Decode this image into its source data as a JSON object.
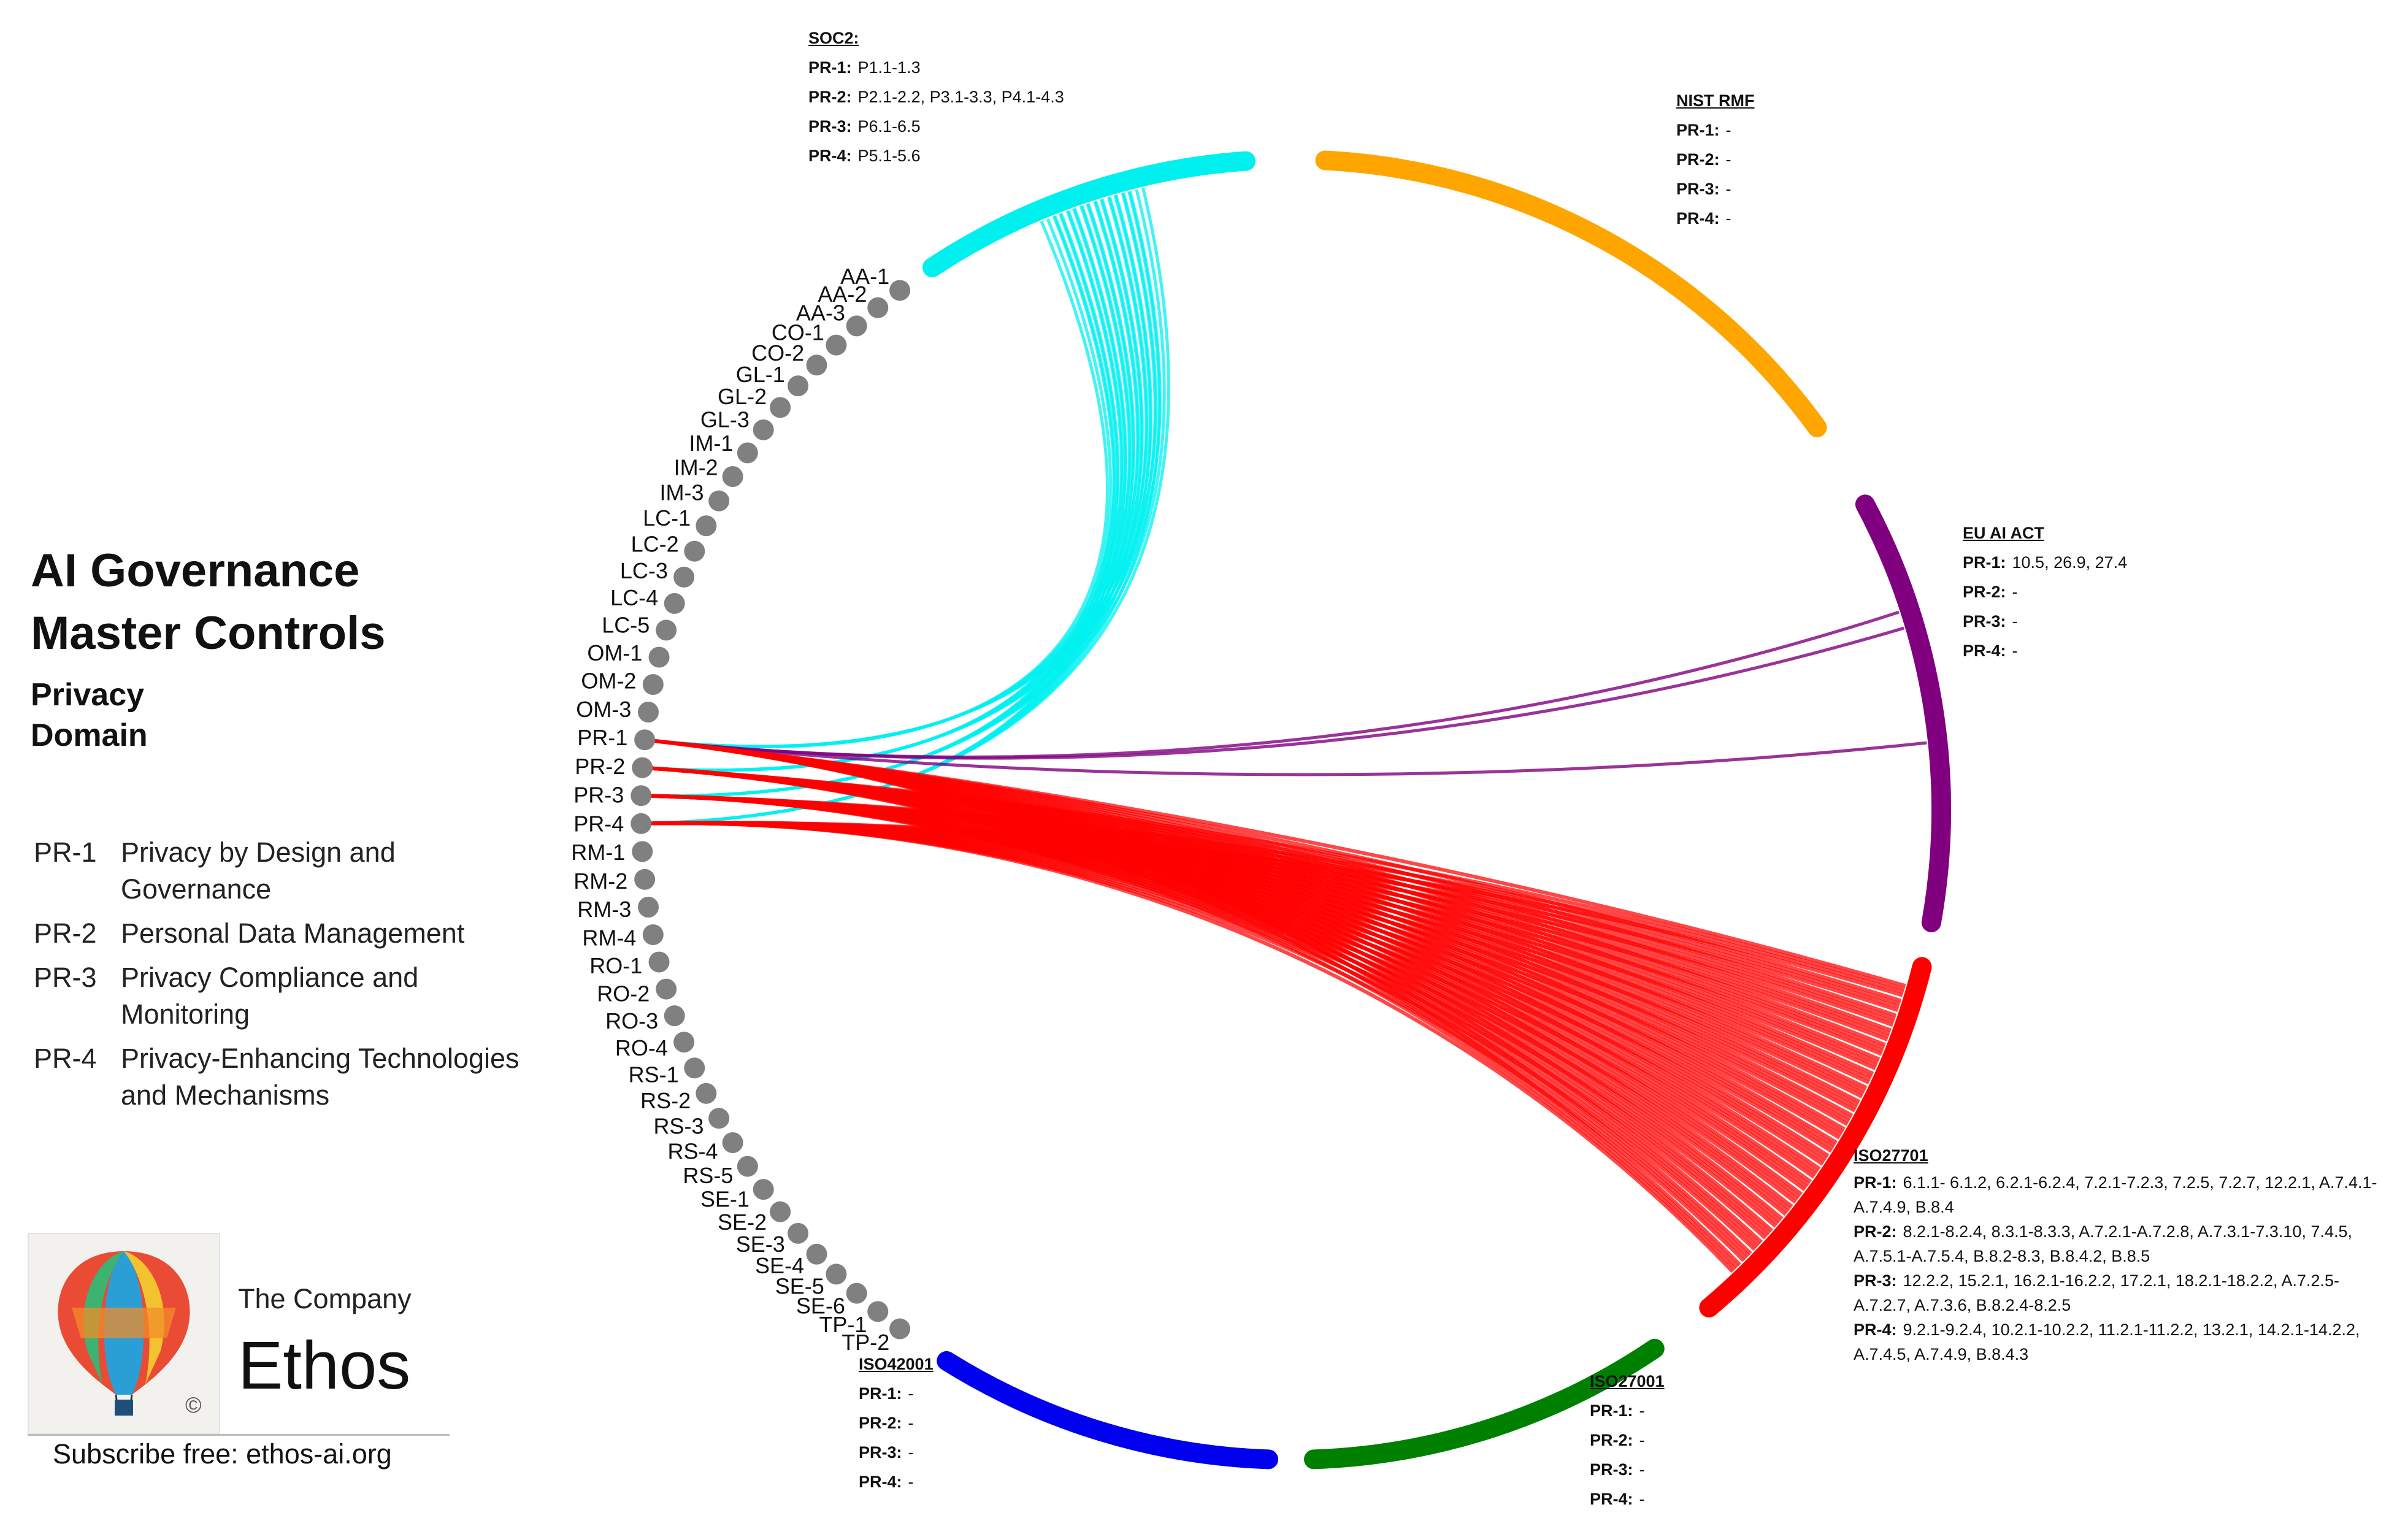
{
  "title_lines": [
    "AI Governance",
    "Master Controls"
  ],
  "subtitle_lines": [
    "Privacy",
    "Domain"
  ],
  "legend": [
    {
      "code": "PR-1",
      "desc": "Privacy by Design and Governance"
    },
    {
      "code": "PR-2",
      "desc": "Personal Data Management"
    },
    {
      "code": "PR-3",
      "desc": "Privacy Compliance and Monitoring"
    },
    {
      "code": "PR-4",
      "desc": "Privacy-Enhancing Technologies and Mechanisms"
    }
  ],
  "company": {
    "prefix": "The Company",
    "name": "Ethos",
    "subscribe": "Subscribe free: ethos-ai.org",
    "copyright": "©"
  },
  "controls": [
    "AA-1",
    "AA-2",
    "AA-3",
    "CO-1",
    "CO-2",
    "GL-1",
    "GL-2",
    "GL-3",
    "IM-1",
    "IM-2",
    "IM-3",
    "LC-1",
    "LC-2",
    "LC-3",
    "LC-4",
    "LC-5",
    "OM-1",
    "OM-2",
    "OM-3",
    "PR-1",
    "PR-2",
    "PR-3",
    "PR-4",
    "RM-1",
    "RM-2",
    "RM-3",
    "RM-4",
    "RO-1",
    "RO-2",
    "RO-3",
    "RO-4",
    "RS-1",
    "RS-2",
    "RS-3",
    "RS-4",
    "RS-5",
    "SE-1",
    "SE-2",
    "SE-3",
    "SE-4",
    "SE-5",
    "SE-6",
    "TP-1",
    "TP-2"
  ],
  "control_dot_color": "#808080",
  "frameworks": [
    {
      "name": "SOC2:",
      "color": "#00f0f0",
      "rows": [
        {
          "label": "PR-1:",
          "value": "P1.1-1.3"
        },
        {
          "label": "PR-2:",
          "value": "P2.1-2.2, P3.1-3.3, P4.1-4.3"
        },
        {
          "label": "PR-3:",
          "value": "P6.1-6.5"
        },
        {
          "label": "PR-4:",
          "value": "P5.1-5.6"
        }
      ]
    },
    {
      "name": "NIST RMF",
      "color": "#ffa500",
      "rows": [
        {
          "label": "PR-1:",
          "value": "-"
        },
        {
          "label": "PR-2:",
          "value": "-"
        },
        {
          "label": "PR-3:",
          "value": "-"
        },
        {
          "label": "PR-4:",
          "value": "-"
        }
      ]
    },
    {
      "name": "EU AI ACT",
      "color": "#800080",
      "rows": [
        {
          "label": "PR-1:",
          "value": "10.5, 26.9, 27.4"
        },
        {
          "label": "PR-2:",
          "value": "-"
        },
        {
          "label": "PR-3:",
          "value": "-"
        },
        {
          "label": "PR-4:",
          "value": "-"
        }
      ]
    },
    {
      "name": "ISO27701",
      "color": "#ff0000",
      "rows": [
        {
          "label": "PR-1:",
          "value": "6.1.1- 6.1.2, 6.2.1-6.2.4, 7.2.1-7.2.3, 7.2.5, 7.2.7, 12.2.1, A.7.4.1-A.7.4.9, B.8.4"
        },
        {
          "label": "PR-2:",
          "value": "8.2.1-8.2.4, 8.3.1-8.3.3, A.7.2.1-A.7.2.8, A.7.3.1-7.3.10, 7.4.5, A.7.5.1-A.7.5.4, B.8.2-8.3, B.8.4.2, B.8.5"
        },
        {
          "label": "PR-3:",
          "value": "12.2.2, 15.2.1, 16.2.1-16.2.2, 17.2.1, 18.2.1-18.2.2, A.7.2.5-A.7.2.7, A.7.3.6, B.8.2.4-8.2.5"
        },
        {
          "label": "PR-4:",
          "value": "9.2.1-9.2.4, 10.2.1-10.2.2, 11.2.1-11.2.2, 13.2.1, 14.2.1-14.2.2, A.7.4.5, A.7.4.9, B.8.4.3"
        }
      ]
    },
    {
      "name": "ISO27001",
      "color": "#008000",
      "rows": [
        {
          "label": "PR-1:",
          "value": "-"
        },
        {
          "label": "PR-2:",
          "value": "-"
        },
        {
          "label": "PR-3:",
          "value": "-"
        },
        {
          "label": "PR-4:",
          "value": "-"
        }
      ]
    },
    {
      "name": "ISO42001",
      "color": "#0000ee",
      "rows": [
        {
          "label": "PR-1:",
          "value": "-"
        },
        {
          "label": "PR-2:",
          "value": "-"
        },
        {
          "label": "PR-3:",
          "value": "-"
        },
        {
          "label": "PR-4:",
          "value": "-"
        }
      ]
    }
  ]
}
